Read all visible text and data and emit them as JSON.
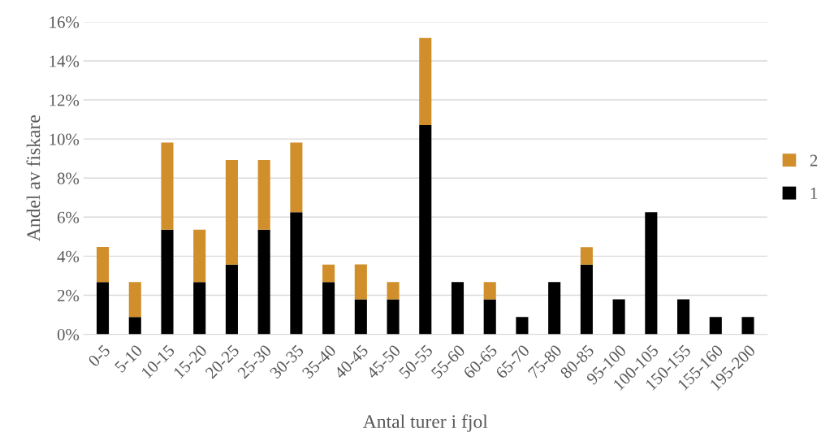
{
  "chart_data": {
    "type": "bar",
    "stacked": true,
    "xlabel": "Antal turer i fjol",
    "ylabel": "Andel av fiskare",
    "categories": [
      "0-5",
      "5-10",
      "10-15",
      "15-20",
      "20-25",
      "25-30",
      "30-35",
      "35-40",
      "40-45",
      "45-50",
      "50-55",
      "55-60",
      "60-65",
      "65-70",
      "75-80",
      "80-85",
      "95-100",
      "100-105",
      "150-155",
      "155-160",
      "195-200"
    ],
    "series": [
      {
        "name": "1",
        "color": "#000000",
        "values": [
          2.68,
          0.89,
          5.36,
          2.68,
          3.57,
          5.36,
          6.25,
          2.68,
          1.79,
          1.79,
          10.71,
          2.68,
          1.79,
          0.89,
          2.68,
          3.57,
          1.79,
          6.25,
          1.79,
          0.89,
          0.89
        ]
      },
      {
        "name": "2",
        "color": "#d08f2b",
        "values": [
          1.79,
          1.79,
          4.46,
          2.68,
          5.36,
          3.57,
          3.57,
          0.89,
          1.79,
          0.89,
          4.46,
          0,
          0.89,
          0,
          0,
          0.89,
          0,
          0,
          0,
          0,
          0
        ]
      }
    ],
    "ylim": [
      0,
      16
    ],
    "yticks": [
      {
        "value": 0,
        "label": "0%"
      },
      {
        "value": 2,
        "label": "2%"
      },
      {
        "value": 4,
        "label": "4%"
      },
      {
        "value": 6,
        "label": "6%"
      },
      {
        "value": 8,
        "label": "8%"
      },
      {
        "value": 10,
        "label": "10%"
      },
      {
        "value": 12,
        "label": "12%"
      },
      {
        "value": 14,
        "label": "14%"
      },
      {
        "value": 16,
        "label": "16%"
      }
    ],
    "grid": "y",
    "legend": "right"
  }
}
